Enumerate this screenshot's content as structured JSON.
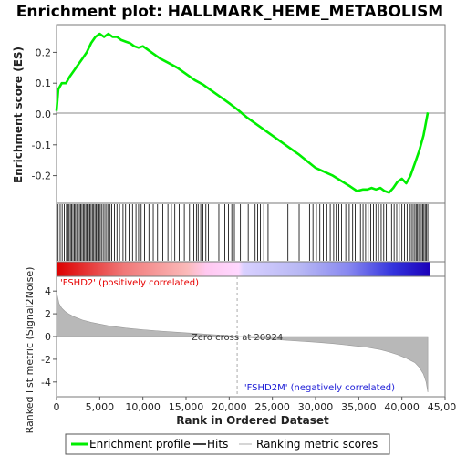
{
  "title": "Enrichment plot: HALLMARK_HEME_METABOLISM",
  "colors": {
    "profile": "#00ee00",
    "hits": "#000000",
    "metric_fill": "#b8b8b8",
    "pos_label": "#e60000",
    "neg_label": "#1a1ad6",
    "frame": "#7a7a7a"
  },
  "chart_data": [
    {
      "type": "line",
      "name": "enrichment-profile",
      "ylabel": "Enrichment score (ES)",
      "xlim": [
        0,
        45000
      ],
      "ylim": [
        -0.29,
        0.29
      ],
      "yticks": [
        -0.2,
        -0.1,
        0.0,
        0.1,
        0.2
      ],
      "ytick_labels": [
        "-0.2",
        "-0.1",
        "0.0",
        "0.1",
        "0.2"
      ],
      "series": [
        {
          "name": "Enrichment profile",
          "x": [
            0,
            200,
            600,
            1100,
            1500,
            2000,
            2500,
            3000,
            3500,
            4000,
            4500,
            5000,
            5500,
            6000,
            6500,
            7000,
            7500,
            8000,
            8500,
            9000,
            9500,
            10000,
            10500,
            11000,
            12000,
            13000,
            14000,
            15000,
            16000,
            17000,
            18000,
            19000,
            20000,
            20924,
            22000,
            24000,
            26000,
            28000,
            30000,
            32000,
            34000,
            34800,
            35500,
            36000,
            36500,
            37000,
            37500,
            38000,
            38500,
            39000,
            39500,
            40000,
            40500,
            41000,
            41500,
            42000,
            42500,
            43000
          ],
          "y": [
            0.01,
            0.08,
            0.1,
            0.1,
            0.12,
            0.14,
            0.16,
            0.18,
            0.2,
            0.23,
            0.25,
            0.26,
            0.25,
            0.26,
            0.25,
            0.25,
            0.24,
            0.235,
            0.23,
            0.22,
            0.215,
            0.22,
            0.21,
            0.2,
            0.18,
            0.165,
            0.15,
            0.13,
            0.11,
            0.095,
            0.075,
            0.055,
            0.035,
            0.015,
            -0.01,
            -0.05,
            -0.09,
            -0.13,
            -0.175,
            -0.2,
            -0.235,
            -0.25,
            -0.245,
            -0.245,
            -0.24,
            -0.245,
            -0.24,
            -0.25,
            -0.255,
            -0.24,
            -0.22,
            -0.21,
            -0.225,
            -0.2,
            -0.16,
            -0.12,
            -0.07,
            0.005
          ]
        }
      ]
    },
    {
      "type": "scatter",
      "name": "hits",
      "xlim": [
        0,
        45000
      ],
      "series": [
        {
          "name": "Hits",
          "x": [
            60,
            180,
            420,
            650,
            900,
            1150,
            1300,
            1450,
            1600,
            1750,
            1900,
            2050,
            2200,
            2350,
            2500,
            2650,
            2800,
            2950,
            3100,
            3250,
            3400,
            3550,
            3700,
            3850,
            4000,
            4150,
            4300,
            4450,
            4600,
            4750,
            4900,
            5050,
            5200,
            5400,
            5600,
            5800,
            6000,
            6200,
            6400,
            6700,
            7000,
            7300,
            7700,
            8000,
            8400,
            8800,
            9200,
            9500,
            9800,
            10200,
            10700,
            11200,
            11700,
            12300,
            12900,
            13300,
            13700,
            14200,
            14800,
            15400,
            15900,
            16200,
            16400,
            16700,
            16950,
            17300,
            17600,
            18000,
            18800,
            19500,
            19900,
            20300,
            20600,
            21300,
            22200,
            23000,
            23300,
            23600,
            24000,
            24500,
            25300,
            26800,
            28100,
            29300,
            29700,
            30100,
            30500,
            30900,
            31300,
            31700,
            32100,
            32400,
            32700,
            33000,
            33500,
            33900,
            34300,
            34600,
            34900,
            35200,
            35500,
            35800,
            36100,
            36400,
            36700,
            37000,
            37300,
            37600,
            37900,
            38200,
            38500,
            38800,
            39100,
            39400,
            39700,
            40000,
            40300,
            40600,
            40900,
            41100,
            41300,
            41500,
            41650,
            41800,
            41950,
            42100,
            42250,
            42400,
            42550,
            42700,
            42850,
            43000
          ]
        }
      ]
    },
    {
      "type": "area",
      "name": "ranked-list-metric",
      "xlabel": "Rank in Ordered Dataset",
      "ylabel": "Ranked list metric (Signal2Noise)",
      "xlim": [
        0,
        45000
      ],
      "ylim": [
        -5.3,
        5.3
      ],
      "xticks": [
        0,
        5000,
        10000,
        15000,
        20000,
        25000,
        30000,
        35000,
        40000,
        45000
      ],
      "xtick_labels": [
        "0",
        "5,000",
        "10,000",
        "15,000",
        "20,000",
        "25,000",
        "30,000",
        "35,000",
        "40,000",
        "45,000"
      ],
      "yticks": [
        -4,
        -2,
        0,
        2,
        4
      ],
      "ytick_labels": [
        "-4",
        "-2",
        "0",
        "2",
        "4"
      ],
      "series": [
        {
          "name": "Ranking metric scores",
          "x": [
            0,
            100,
            300,
            600,
            1000,
            1500,
            2000,
            3000,
            4000,
            5000,
            6000,
            8000,
            10000,
            12000,
            14000,
            16000,
            18000,
            20000,
            20924,
            22000,
            24000,
            26000,
            28000,
            30000,
            32000,
            34000,
            36000,
            37500,
            38500,
            39500,
            40500,
            41500,
            42000,
            42500,
            42800,
            43000
          ],
          "y": [
            4.0,
            3.6,
            2.9,
            2.5,
            2.2,
            1.95,
            1.75,
            1.45,
            1.25,
            1.1,
            0.95,
            0.75,
            0.6,
            0.48,
            0.38,
            0.27,
            0.17,
            0.07,
            0.0,
            -0.08,
            -0.2,
            -0.3,
            -0.4,
            -0.5,
            -0.62,
            -0.78,
            -0.95,
            -1.15,
            -1.35,
            -1.6,
            -1.9,
            -2.3,
            -2.7,
            -3.3,
            -4.0,
            -4.9
          ]
        }
      ],
      "annotations": {
        "zero_cross": "Zero cross at 20924",
        "zero_cross_x": 20924,
        "positive_label": "'FSHD2' (positively correlated)",
        "negative_label": "'FSHD2M' (negatively correlated)"
      }
    }
  ],
  "legend": {
    "items": [
      {
        "label": "Enrichment profile",
        "icon": "green-line-icon"
      },
      {
        "label": "Hits",
        "icon": "black-line-icon"
      },
      {
        "label": "Ranking metric scores",
        "icon": "gray-line-icon"
      }
    ]
  }
}
